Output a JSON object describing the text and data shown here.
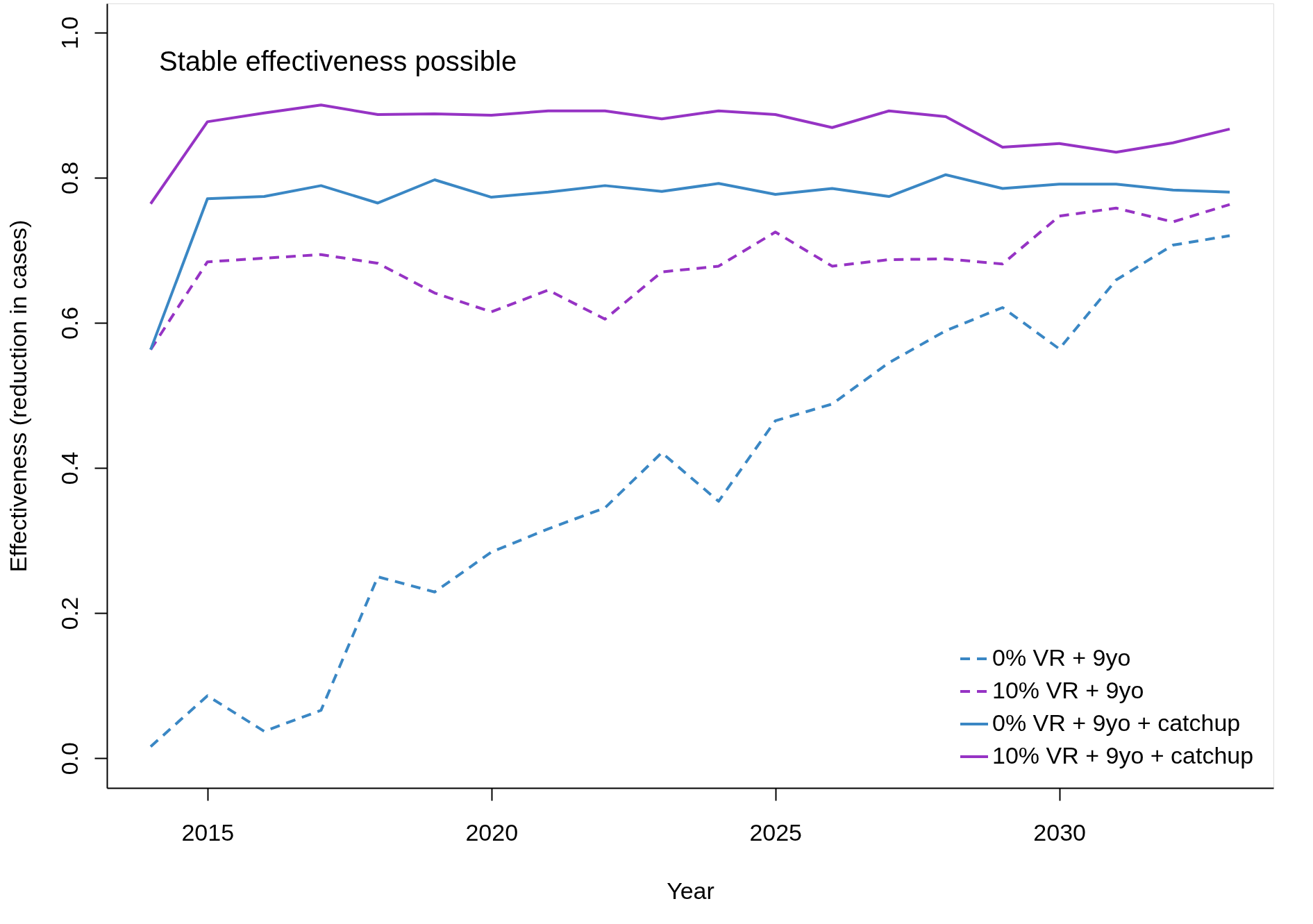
{
  "chart_data": {
    "type": "line",
    "xlabel": "Year",
    "ylabel": "Effectiveness (reduction in cases)",
    "annotations": [
      "Stable effectiveness possible"
    ],
    "x": [
      2014,
      2015,
      2016,
      2017,
      2018,
      2019,
      2020,
      2021,
      2022,
      2023,
      2024,
      2025,
      2026,
      2027,
      2028,
      2029,
      2030,
      2031,
      2032,
      2033
    ],
    "series": [
      {
        "name": "0% VR + 9yo",
        "color": "#3a87c4",
        "line_style": "dashed",
        "values": [
          0.016,
          0.086,
          0.037,
          0.066,
          0.25,
          0.229,
          0.284,
          0.316,
          0.345,
          0.421,
          0.354,
          0.465,
          0.488,
          0.545,
          0.589,
          0.621,
          0.564,
          0.659,
          0.707,
          0.72
        ]
      },
      {
        "name": "10% VR + 9yo",
        "color": "#9633c4",
        "line_style": "dashed",
        "values": [
          0.563,
          0.684,
          0.689,
          0.694,
          0.682,
          0.641,
          0.615,
          0.645,
          0.605,
          0.67,
          0.678,
          0.725,
          0.678,
          0.687,
          0.688,
          0.681,
          0.747,
          0.758,
          0.739,
          0.763
        ]
      },
      {
        "name": "0% VR + 9yo + catchup",
        "color": "#3a87c4",
        "line_style": "solid",
        "values": [
          0.563,
          0.771,
          0.774,
          0.789,
          0.765,
          0.797,
          0.773,
          0.78,
          0.789,
          0.781,
          0.792,
          0.777,
          0.785,
          0.774,
          0.804,
          0.785,
          0.791,
          0.791,
          0.783,
          0.78
        ]
      },
      {
        "name": "10% VR + 9yo + catchup",
        "color": "#9633c4",
        "line_style": "solid",
        "values": [
          0.764,
          0.877,
          0.889,
          0.9,
          0.887,
          0.888,
          0.886,
          0.892,
          0.892,
          0.881,
          0.892,
          0.887,
          0.869,
          0.892,
          0.884,
          0.842,
          0.847,
          0.835,
          0.848,
          0.867
        ]
      }
    ],
    "xlim": [
      2013.23,
      2033.77
    ],
    "xticks": [
      2015,
      2020,
      2025,
      2030
    ],
    "ylim": [
      -0.041,
      1.04
    ],
    "yticks": [
      {
        "value": 0,
        "label": "0.0"
      },
      {
        "value": 0.2,
        "label": "0.2"
      },
      {
        "value": 0.4,
        "label": "0.4"
      },
      {
        "value": 0.6,
        "label": "0.6"
      },
      {
        "value": 0.8,
        "label": "0.8"
      },
      {
        "value": 1,
        "label": "1.0"
      }
    ],
    "legend": "bottom right",
    "grid": false
  }
}
